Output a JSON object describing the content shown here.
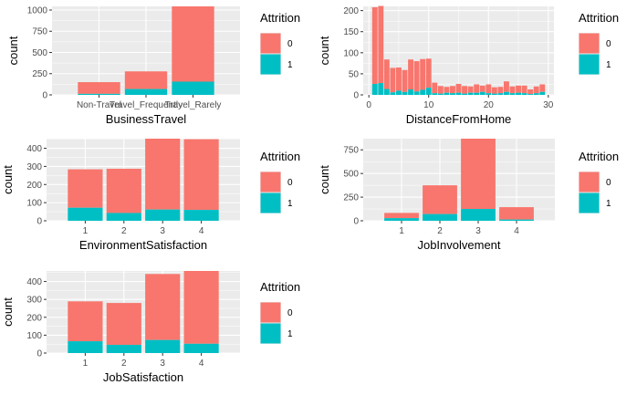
{
  "colors": {
    "panel_bg": "#EBEBEB",
    "grid": "#FFFFFF",
    "series_0": "#F8766D",
    "series_1": "#00BFC4",
    "axis_text": "#4D4D4D"
  },
  "chart_data": [
    {
      "type": "bar",
      "stacked": true,
      "xlabel": "BusinessTravel",
      "ylabel": "count",
      "categories": [
        "Non-Travel",
        "Travel_Frequently",
        "Travel_Rarely"
      ],
      "series": [
        {
          "name": "0",
          "values": [
            138,
            208,
            887
          ]
        },
        {
          "name": "1",
          "values": [
            12,
            69,
            156
          ]
        }
      ],
      "ylim": [
        0,
        1043
      ],
      "yticks": [
        0,
        250,
        500,
        750,
        1000
      ],
      "legend": {
        "title": "Attrition",
        "position": "right"
      }
    },
    {
      "type": "bar",
      "stacked": true,
      "xlabel": "DistanceFromHome",
      "ylabel": "count",
      "x": [
        1,
        2,
        3,
        4,
        5,
        6,
        7,
        8,
        9,
        10,
        11,
        12,
        13,
        14,
        15,
        16,
        17,
        18,
        19,
        20,
        21,
        22,
        23,
        24,
        25,
        26,
        27,
        28,
        29
      ],
      "series": [
        {
          "name": "0",
          "values": [
            182,
            183,
            70,
            58,
            55,
            52,
            71,
            72,
            73,
            69,
            25,
            18,
            14,
            17,
            21,
            18,
            15,
            20,
            15,
            21,
            15,
            15,
            25,
            16,
            17,
            18,
            11,
            16,
            18
          ]
        },
        {
          "name": "1",
          "values": [
            26,
            28,
            14,
            6,
            10,
            7,
            13,
            8,
            12,
            17,
            4,
            3,
            5,
            4,
            5,
            3,
            5,
            5,
            7,
            4,
            3,
            4,
            7,
            4,
            5,
            4,
            2,
            4,
            7
          ]
        }
      ],
      "ylim": [
        0,
        210
      ],
      "yticks": [
        0,
        50,
        100,
        150,
        200
      ],
      "xticks": [
        0,
        10,
        20,
        30
      ],
      "legend": {
        "title": "Attrition",
        "position": "right"
      }
    },
    {
      "type": "bar",
      "stacked": true,
      "xlabel": "EnvironmentSatisfaction",
      "ylabel": "count",
      "categories": [
        "1",
        "2",
        "3",
        "4"
      ],
      "series": [
        {
          "name": "0",
          "values": [
            212,
            244,
            391,
            390
          ]
        },
        {
          "name": "1",
          "values": [
            72,
            43,
            62,
            60
          ]
        }
      ],
      "ylim": [
        0,
        453
      ],
      "yticks": [
        0,
        100,
        200,
        300,
        400
      ],
      "legend": {
        "title": "Attrition",
        "position": "right"
      }
    },
    {
      "type": "bar",
      "stacked": true,
      "xlabel": "JobInvolvement",
      "ylabel": "count",
      "categories": [
        "1",
        "2",
        "3",
        "4"
      ],
      "series": [
        {
          "name": "0",
          "values": [
            55,
            304,
            743,
            131
          ]
        },
        {
          "name": "1",
          "values": [
            28,
            71,
            125,
            13
          ]
        }
      ],
      "ylim": [
        0,
        868
      ],
      "yticks": [
        0,
        250,
        500,
        750
      ],
      "legend": {
        "title": "Attrition",
        "position": "right"
      }
    },
    {
      "type": "bar",
      "stacked": true,
      "xlabel": "JobSatisfaction",
      "ylabel": "count",
      "categories": [
        "1",
        "2",
        "3",
        "4"
      ],
      "series": [
        {
          "name": "0",
          "values": [
            223,
            234,
            369,
            407
          ]
        },
        {
          "name": "1",
          "values": [
            66,
            46,
            73,
            52
          ]
        }
      ],
      "ylim": [
        0,
        459
      ],
      "yticks": [
        0,
        100,
        200,
        300,
        400
      ],
      "legend": {
        "title": "Attrition",
        "position": "right"
      }
    }
  ]
}
